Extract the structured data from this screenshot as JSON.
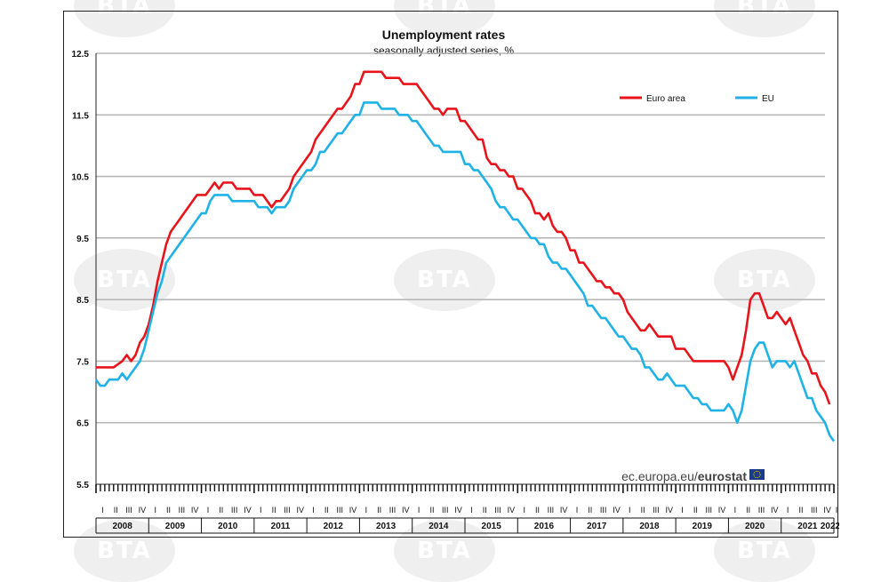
{
  "watermark": "BTA",
  "source": {
    "prefix": "ec.europa.eu/",
    "brand": "eurostat"
  },
  "colors": {
    "euro_area": "#e8141b",
    "eu": "#1fb2e6",
    "grid": "#b8b8b8",
    "axis": "#222222"
  },
  "chart_data": {
    "type": "line",
    "title": "Unemployment rates",
    "subtitle": "seasonally adjusted series, %",
    "xlabel": "",
    "ylabel": "",
    "ylim": [
      5.5,
      12.5
    ],
    "yticks": [
      "5.5",
      "6.5",
      "7.5",
      "8.5",
      "9.5",
      "10.5",
      "11.5",
      "12.5"
    ],
    "grid": true,
    "legend_position": "top-right",
    "x_start": "2008-01",
    "x_end": "2022-01",
    "years": [
      "2008",
      "2009",
      "2010",
      "2011",
      "2012",
      "2013",
      "2014",
      "2015",
      "2016",
      "2017",
      "2018",
      "2019",
      "2020",
      "2021",
      "2022"
    ],
    "quarters": [
      "I",
      "II",
      "III",
      "IV"
    ],
    "series": [
      {
        "name": "Euro area",
        "color": "#e8141b",
        "points": [
          [
            "2008-01",
            7.4
          ],
          [
            "2008-03",
            7.4
          ],
          [
            "2008-05",
            7.4
          ],
          [
            "2008-07",
            7.5
          ],
          [
            "2008-08",
            7.6
          ],
          [
            "2008-09",
            7.5
          ],
          [
            "2008-10",
            7.6
          ],
          [
            "2008-11",
            7.8
          ],
          [
            "2008-12",
            7.9
          ],
          [
            "2009-01",
            8.1
          ],
          [
            "2009-02",
            8.4
          ],
          [
            "2009-03",
            8.8
          ],
          [
            "2009-04",
            9.1
          ],
          [
            "2009-05",
            9.4
          ],
          [
            "2009-06",
            9.6
          ],
          [
            "2009-07",
            9.7
          ],
          [
            "2009-08",
            9.8
          ],
          [
            "2009-09",
            9.9
          ],
          [
            "2009-10",
            10.0
          ],
          [
            "2009-11",
            10.1
          ],
          [
            "2009-12",
            10.2
          ],
          [
            "2010-02",
            10.2
          ],
          [
            "2010-03",
            10.3
          ],
          [
            "2010-04",
            10.4
          ],
          [
            "2010-05",
            10.3
          ],
          [
            "2010-06",
            10.4
          ],
          [
            "2010-08",
            10.4
          ],
          [
            "2010-09",
            10.3
          ],
          [
            "2010-12",
            10.3
          ],
          [
            "2011-01",
            10.2
          ],
          [
            "2011-03",
            10.2
          ],
          [
            "2011-04",
            10.1
          ],
          [
            "2011-05",
            10.0
          ],
          [
            "2011-06",
            10.1
          ],
          [
            "2011-07",
            10.1
          ],
          [
            "2011-08",
            10.2
          ],
          [
            "2011-09",
            10.3
          ],
          [
            "2011-10",
            10.5
          ],
          [
            "2011-12",
            10.7
          ],
          [
            "2012-02",
            10.9
          ],
          [
            "2012-03",
            11.1
          ],
          [
            "2012-05",
            11.3
          ],
          [
            "2012-07",
            11.5
          ],
          [
            "2012-08",
            11.6
          ],
          [
            "2012-09",
            11.6
          ],
          [
            "2012-10",
            11.7
          ],
          [
            "2012-11",
            11.8
          ],
          [
            "2012-12",
            12.0
          ],
          [
            "2013-01",
            12.0
          ],
          [
            "2013-02",
            12.2
          ],
          [
            "2013-06",
            12.2
          ],
          [
            "2013-07",
            12.1
          ],
          [
            "2013-10",
            12.1
          ],
          [
            "2013-11",
            12.0
          ],
          [
            "2014-02",
            12.0
          ],
          [
            "2014-03",
            11.9
          ],
          [
            "2014-05",
            11.7
          ],
          [
            "2014-06",
            11.6
          ],
          [
            "2014-07",
            11.6
          ],
          [
            "2014-08",
            11.5
          ],
          [
            "2014-09",
            11.6
          ],
          [
            "2014-11",
            11.6
          ],
          [
            "2014-12",
            11.4
          ],
          [
            "2015-01",
            11.4
          ],
          [
            "2015-02",
            11.3
          ],
          [
            "2015-03",
            11.2
          ],
          [
            "2015-04",
            11.1
          ],
          [
            "2015-05",
            11.1
          ],
          [
            "2015-06",
            10.8
          ],
          [
            "2015-07",
            10.7
          ],
          [
            "2015-08",
            10.7
          ],
          [
            "2015-09",
            10.6
          ],
          [
            "2015-10",
            10.6
          ],
          [
            "2015-11",
            10.5
          ],
          [
            "2015-12",
            10.5
          ],
          [
            "2016-01",
            10.3
          ],
          [
            "2016-02",
            10.3
          ],
          [
            "2016-03",
            10.2
          ],
          [
            "2016-04",
            10.1
          ],
          [
            "2016-05",
            9.9
          ],
          [
            "2016-06",
            9.9
          ],
          [
            "2016-07",
            9.8
          ],
          [
            "2016-08",
            9.9
          ],
          [
            "2016-09",
            9.7
          ],
          [
            "2016-10",
            9.6
          ],
          [
            "2016-11",
            9.6
          ],
          [
            "2016-12",
            9.5
          ],
          [
            "2017-01",
            9.3
          ],
          [
            "2017-02",
            9.3
          ],
          [
            "2017-03",
            9.1
          ],
          [
            "2017-04",
            9.1
          ],
          [
            "2017-05",
            9.0
          ],
          [
            "2017-06",
            8.9
          ],
          [
            "2017-07",
            8.8
          ],
          [
            "2017-08",
            8.8
          ],
          [
            "2017-09",
            8.7
          ],
          [
            "2017-10",
            8.7
          ],
          [
            "2017-11",
            8.6
          ],
          [
            "2017-12",
            8.6
          ],
          [
            "2018-01",
            8.5
          ],
          [
            "2018-02",
            8.3
          ],
          [
            "2018-03",
            8.2
          ],
          [
            "2018-04",
            8.1
          ],
          [
            "2018-05",
            8.0
          ],
          [
            "2018-06",
            8.0
          ],
          [
            "2018-07",
            8.1
          ],
          [
            "2018-08",
            8.0
          ],
          [
            "2018-09",
            7.9
          ],
          [
            "2018-12",
            7.9
          ],
          [
            "2019-01",
            7.7
          ],
          [
            "2019-03",
            7.7
          ],
          [
            "2019-05",
            7.5
          ],
          [
            "2019-12",
            7.5
          ],
          [
            "2020-01",
            7.4
          ],
          [
            "2020-02",
            7.2
          ],
          [
            "2020-03",
            7.4
          ],
          [
            "2020-04",
            7.6
          ],
          [
            "2020-05",
            8.0
          ],
          [
            "2020-06",
            8.5
          ],
          [
            "2020-07",
            8.6
          ],
          [
            "2020-08",
            8.6
          ],
          [
            "2020-09",
            8.4
          ],
          [
            "2020-10",
            8.2
          ],
          [
            "2020-11",
            8.2
          ],
          [
            "2020-12",
            8.3
          ],
          [
            "2021-01",
            8.2
          ],
          [
            "2021-02",
            8.1
          ],
          [
            "2021-03",
            8.2
          ],
          [
            "2021-04",
            8.0
          ],
          [
            "2021-05",
            7.8
          ],
          [
            "2021-06",
            7.6
          ],
          [
            "2021-07",
            7.5
          ],
          [
            "2021-08",
            7.3
          ],
          [
            "2021-09",
            7.3
          ],
          [
            "2021-10",
            7.1
          ],
          [
            "2021-11",
            7.0
          ],
          [
            "2021-12",
            6.8
          ]
        ]
      },
      {
        "name": "EU",
        "color": "#1fb2e6",
        "points": [
          [
            "2008-01",
            7.2
          ],
          [
            "2008-02",
            7.1
          ],
          [
            "2008-03",
            7.1
          ],
          [
            "2008-04",
            7.2
          ],
          [
            "2008-06",
            7.2
          ],
          [
            "2008-07",
            7.3
          ],
          [
            "2008-08",
            7.2
          ],
          [
            "2008-09",
            7.3
          ],
          [
            "2008-10",
            7.4
          ],
          [
            "2008-11",
            7.5
          ],
          [
            "2008-12",
            7.7
          ],
          [
            "2009-01",
            8.0
          ],
          [
            "2009-02",
            8.3
          ],
          [
            "2009-03",
            8.6
          ],
          [
            "2009-04",
            8.8
          ],
          [
            "2009-05",
            9.1
          ],
          [
            "2009-06",
            9.2
          ],
          [
            "2009-07",
            9.3
          ],
          [
            "2009-08",
            9.4
          ],
          [
            "2009-09",
            9.5
          ],
          [
            "2009-10",
            9.6
          ],
          [
            "2009-11",
            9.7
          ],
          [
            "2009-12",
            9.8
          ],
          [
            "2010-01",
            9.9
          ],
          [
            "2010-02",
            9.9
          ],
          [
            "2010-03",
            10.1
          ],
          [
            "2010-04",
            10.2
          ],
          [
            "2010-07",
            10.2
          ],
          [
            "2010-08",
            10.1
          ],
          [
            "2011-01",
            10.1
          ],
          [
            "2011-02",
            10.0
          ],
          [
            "2011-04",
            10.0
          ],
          [
            "2011-05",
            9.9
          ],
          [
            "2011-06",
            10.0
          ],
          [
            "2011-08",
            10.0
          ],
          [
            "2011-09",
            10.1
          ],
          [
            "2011-10",
            10.3
          ],
          [
            "2011-12",
            10.5
          ],
          [
            "2012-01",
            10.6
          ],
          [
            "2012-02",
            10.6
          ],
          [
            "2012-03",
            10.7
          ],
          [
            "2012-04",
            10.9
          ],
          [
            "2012-05",
            10.9
          ],
          [
            "2012-06",
            11.0
          ],
          [
            "2012-07",
            11.1
          ],
          [
            "2012-08",
            11.2
          ],
          [
            "2012-09",
            11.2
          ],
          [
            "2012-10",
            11.3
          ],
          [
            "2012-11",
            11.4
          ],
          [
            "2012-12",
            11.5
          ],
          [
            "2013-01",
            11.5
          ],
          [
            "2013-02",
            11.7
          ],
          [
            "2013-05",
            11.7
          ],
          [
            "2013-06",
            11.6
          ],
          [
            "2013-09",
            11.6
          ],
          [
            "2013-10",
            11.5
          ],
          [
            "2013-12",
            11.5
          ],
          [
            "2014-01",
            11.4
          ],
          [
            "2014-02",
            11.4
          ],
          [
            "2014-03",
            11.3
          ],
          [
            "2014-04",
            11.2
          ],
          [
            "2014-05",
            11.1
          ],
          [
            "2014-06",
            11.0
          ],
          [
            "2014-07",
            11.0
          ],
          [
            "2014-08",
            10.9
          ],
          [
            "2014-12",
            10.9
          ],
          [
            "2015-01",
            10.7
          ],
          [
            "2015-02",
            10.7
          ],
          [
            "2015-03",
            10.6
          ],
          [
            "2015-04",
            10.6
          ],
          [
            "2015-05",
            10.5
          ],
          [
            "2015-06",
            10.4
          ],
          [
            "2015-07",
            10.3
          ],
          [
            "2015-08",
            10.1
          ],
          [
            "2015-09",
            10.0
          ],
          [
            "2015-10",
            10.0
          ],
          [
            "2015-11",
            9.9
          ],
          [
            "2015-12",
            9.8
          ],
          [
            "2016-01",
            9.8
          ],
          [
            "2016-02",
            9.7
          ],
          [
            "2016-03",
            9.6
          ],
          [
            "2016-04",
            9.5
          ],
          [
            "2016-05",
            9.5
          ],
          [
            "2016-06",
            9.4
          ],
          [
            "2016-07",
            9.4
          ],
          [
            "2016-08",
            9.2
          ],
          [
            "2016-09",
            9.1
          ],
          [
            "2016-10",
            9.1
          ],
          [
            "2016-11",
            9.0
          ],
          [
            "2016-12",
            9.0
          ],
          [
            "2017-01",
            8.9
          ],
          [
            "2017-02",
            8.8
          ],
          [
            "2017-03",
            8.7
          ],
          [
            "2017-04",
            8.6
          ],
          [
            "2017-05",
            8.4
          ],
          [
            "2017-06",
            8.4
          ],
          [
            "2017-07",
            8.3
          ],
          [
            "2017-08",
            8.2
          ],
          [
            "2017-09",
            8.2
          ],
          [
            "2017-10",
            8.1
          ],
          [
            "2017-11",
            8.0
          ],
          [
            "2017-12",
            7.9
          ],
          [
            "2018-01",
            7.9
          ],
          [
            "2018-02",
            7.8
          ],
          [
            "2018-03",
            7.7
          ],
          [
            "2018-04",
            7.7
          ],
          [
            "2018-05",
            7.6
          ],
          [
            "2018-06",
            7.4
          ],
          [
            "2018-07",
            7.4
          ],
          [
            "2018-08",
            7.3
          ],
          [
            "2018-09",
            7.2
          ],
          [
            "2018-10",
            7.2
          ],
          [
            "2018-11",
            7.3
          ],
          [
            "2018-12",
            7.2
          ],
          [
            "2019-01",
            7.1
          ],
          [
            "2019-03",
            7.1
          ],
          [
            "2019-04",
            7.0
          ],
          [
            "2019-05",
            6.9
          ],
          [
            "2019-06",
            6.9
          ],
          [
            "2019-07",
            6.8
          ],
          [
            "2019-08",
            6.8
          ],
          [
            "2019-09",
            6.7
          ],
          [
            "2019-12",
            6.7
          ],
          [
            "2020-01",
            6.8
          ],
          [
            "2020-02",
            6.7
          ],
          [
            "2020-03",
            6.5
          ],
          [
            "2020-04",
            6.7
          ],
          [
            "2020-05",
            7.1
          ],
          [
            "2020-06",
            7.5
          ],
          [
            "2020-07",
            7.7
          ],
          [
            "2020-08",
            7.8
          ],
          [
            "2020-09",
            7.8
          ],
          [
            "2020-10",
            7.6
          ],
          [
            "2020-11",
            7.4
          ],
          [
            "2020-12",
            7.5
          ],
          [
            "2021-02",
            7.5
          ],
          [
            "2021-03",
            7.4
          ],
          [
            "2021-04",
            7.5
          ],
          [
            "2021-05",
            7.3
          ],
          [
            "2021-06",
            7.1
          ],
          [
            "2021-07",
            6.9
          ],
          [
            "2021-08",
            6.9
          ],
          [
            "2021-09",
            6.7
          ],
          [
            "2021-10",
            6.6
          ],
          [
            "2021-11",
            6.5
          ],
          [
            "2021-12",
            6.3
          ],
          [
            "2022-01",
            6.2
          ]
        ]
      }
    ]
  }
}
